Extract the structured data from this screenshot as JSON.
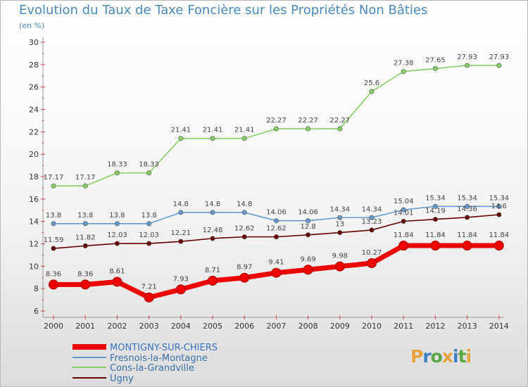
{
  "title": "Evolution du Taux de Taxe Foncière sur les Propriétés Non Bâties",
  "unit": "(en %)",
  "logo": {
    "text": "Proxiti",
    "colors": [
      "#e8a33d",
      "#3a7fc1",
      "#5aa544",
      "#e8a33d",
      "#3a7fc1",
      "#5aa544",
      "#e8a33d"
    ]
  },
  "chart_data": {
    "type": "line",
    "title": "Evolution du Taux de Taxe Foncière sur les Propriétés Non Bâties",
    "ylabel": "(en %)",
    "xlabel": "",
    "ylim": [
      6,
      30
    ],
    "y_ticks": [
      "6",
      "8",
      "10",
      "12",
      "14",
      "16",
      "18",
      "20",
      "22",
      "24",
      "26",
      "28",
      "30"
    ],
    "categories": [
      "2000",
      "2001",
      "2002",
      "2003",
      "2004",
      "2005",
      "2006",
      "2007",
      "2008",
      "2009",
      "2010",
      "2011",
      "2012",
      "2013",
      "2014"
    ],
    "series": [
      {
        "name": "MONTIGNY-SUR-CHIERS",
        "color": "#ee0000",
        "values": [
          8.36,
          8.36,
          8.61,
          7.21,
          7.93,
          8.71,
          8.97,
          9.41,
          9.69,
          9.98,
          10.27,
          11.84,
          11.84,
          11.84,
          11.84
        ],
        "labels": [
          "8.36",
          "8.36",
          "8.61",
          "7.21",
          "7.93",
          "8.71",
          "8.97",
          "9.41",
          "9.69",
          "9.98",
          "10.27",
          "11.84",
          "11.84",
          "11.84",
          "11.84"
        ]
      },
      {
        "name": "Fresnois-la-Montagne",
        "color": "#6699cc",
        "values": [
          13.8,
          13.8,
          13.8,
          13.8,
          14.8,
          14.8,
          14.8,
          14.06,
          14.06,
          14.34,
          14.34,
          15.04,
          15.34,
          15.34,
          15.34
        ],
        "labels": [
          "13.8",
          "13.8",
          "13.8",
          "13.8",
          "14.8",
          "14.8",
          "14.8",
          "14.06",
          "14.06",
          "14.34",
          "14.34",
          "15.04",
          "15.34",
          "15.34",
          "15.34"
        ]
      },
      {
        "name": "Cons-la-Grandville",
        "color": "#88cc66",
        "values": [
          17.17,
          17.17,
          18.33,
          18.33,
          21.41,
          21.41,
          21.41,
          22.27,
          22.27,
          22.27,
          25.6,
          27.38,
          27.65,
          27.93,
          27.93
        ],
        "labels": [
          "17.17",
          "17.17",
          "18.33",
          "18.33",
          "21.41",
          "21.41",
          "21.41",
          "22.27",
          "22.27",
          "22.27",
          "25.6",
          "27.38",
          "27.65",
          "27.93",
          "27.93"
        ]
      },
      {
        "name": "Ugny",
        "color": "#660000",
        "values": [
          11.59,
          11.82,
          12.03,
          12.03,
          12.21,
          12.48,
          12.62,
          12.62,
          12.8,
          13,
          13.23,
          14.01,
          14.19,
          14.36,
          14.6
        ],
        "labels": [
          "11.59",
          "11.82",
          "12.03",
          "12.03",
          "12.21",
          "12.48",
          "12.62",
          "12.62",
          "12.8",
          "13",
          "13.23",
          "14.01",
          "14.19",
          "14.36",
          "14.6"
        ]
      }
    ],
    "legend_position": "bottom-left",
    "grid": false
  }
}
